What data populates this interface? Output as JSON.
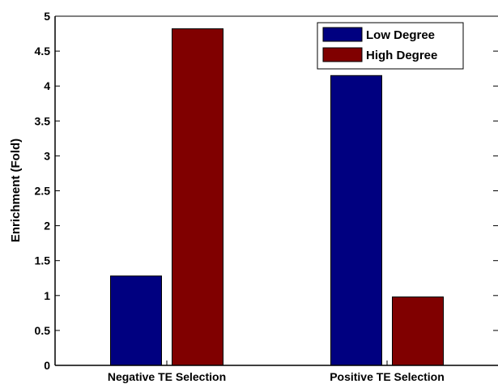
{
  "chart_data": {
    "type": "bar",
    "title": "",
    "xlabel": "",
    "ylabel": "Enrichment (Fold)",
    "categories": [
      "Negative TE Selection",
      "Positive TE Selection"
    ],
    "series": [
      {
        "name": "Low Degree",
        "color": "#000080",
        "values": [
          1.28,
          4.15
        ]
      },
      {
        "name": "High Degree",
        "color": "#800000",
        "values": [
          4.82,
          0.98
        ]
      }
    ],
    "ylim": [
      0,
      5
    ],
    "yticks": [
      0,
      0.5,
      1,
      1.5,
      2,
      2.5,
      3,
      3.5,
      4,
      4.5,
      5
    ],
    "ytick_labels": [
      "0",
      "0.5",
      "1",
      "1.5",
      "2",
      "2.5",
      "3",
      "3.5",
      "4",
      "4.5",
      "5"
    ],
    "grid": false,
    "legend_position": "top-right"
  }
}
